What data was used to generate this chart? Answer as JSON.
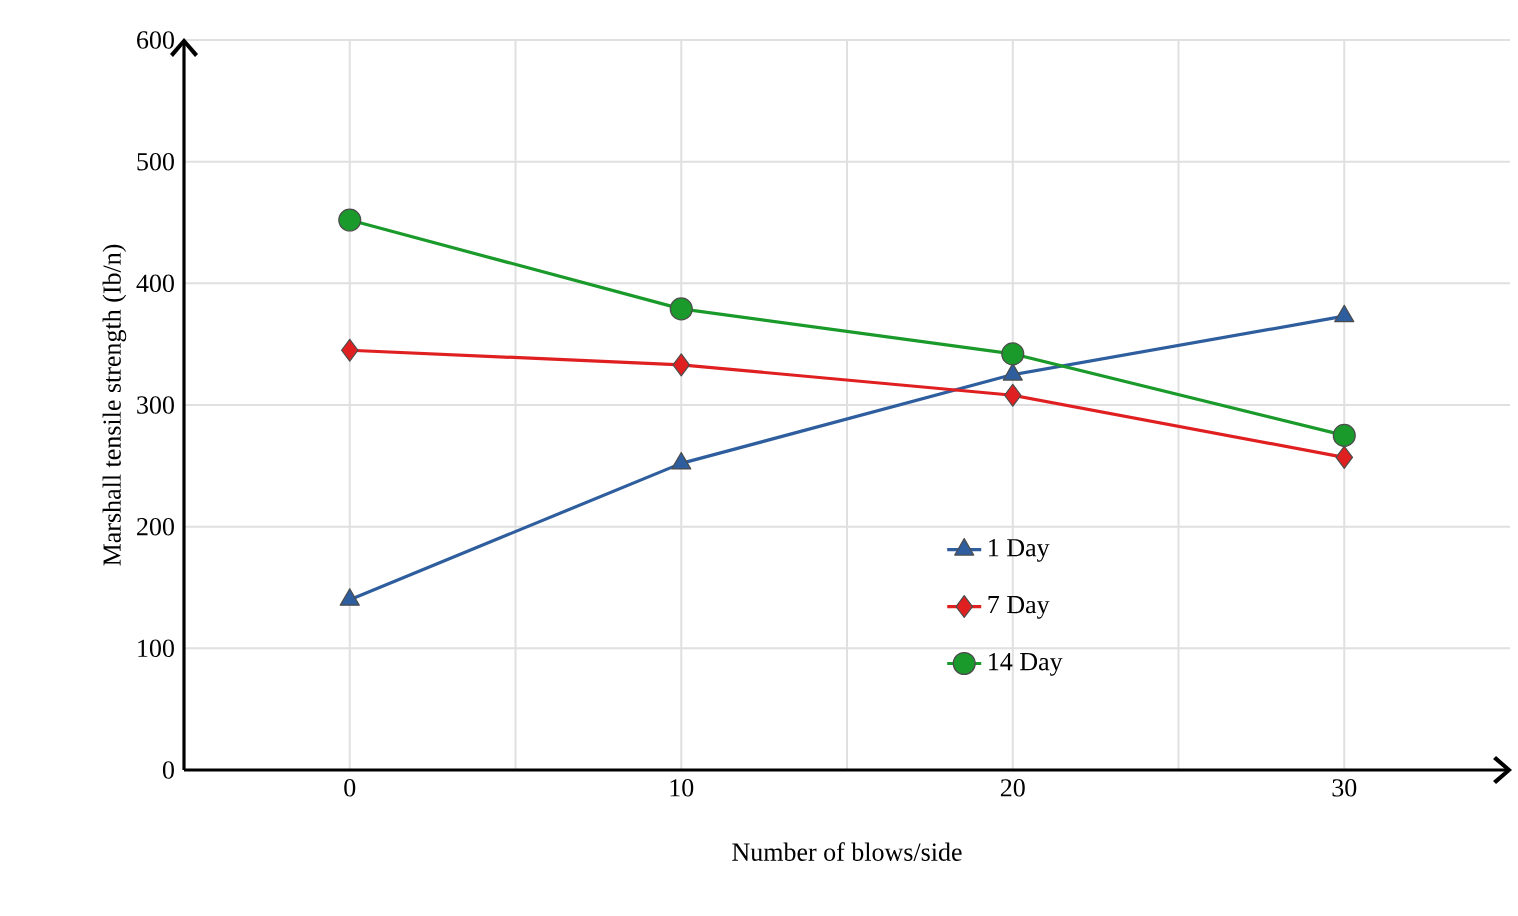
{
  "chart_data": {
    "type": "line",
    "xlabel": "Number of blows/side",
    "ylabel": "Marshall tensile strength (Ib/n)",
    "x": [
      0,
      10,
      20,
      30
    ],
    "series": [
      {
        "name": "1 Day",
        "color": "#2e5e9e",
        "marker": "triangle",
        "values": [
          140,
          252,
          325,
          373
        ]
      },
      {
        "name": "7 Day",
        "color": "#e02020",
        "marker": "diamond",
        "values": [
          345,
          333,
          308,
          257
        ]
      },
      {
        "name": "14 Day",
        "color": "#1a9a2a",
        "marker": "circle",
        "values": [
          452,
          379,
          342,
          275
        ]
      }
    ],
    "xlim": [
      -5,
      35
    ],
    "ylim": [
      0,
      600
    ],
    "xticks": [
      0,
      {
        "value": 5,
        "label": null
      },
      10,
      {
        "value": 15,
        "label": null
      },
      20,
      {
        "value": 25,
        "label": null
      },
      30
    ],
    "yticks": [
      0,
      100,
      200,
      300,
      400,
      500,
      600
    ],
    "grid": true,
    "legend": "bottom"
  }
}
